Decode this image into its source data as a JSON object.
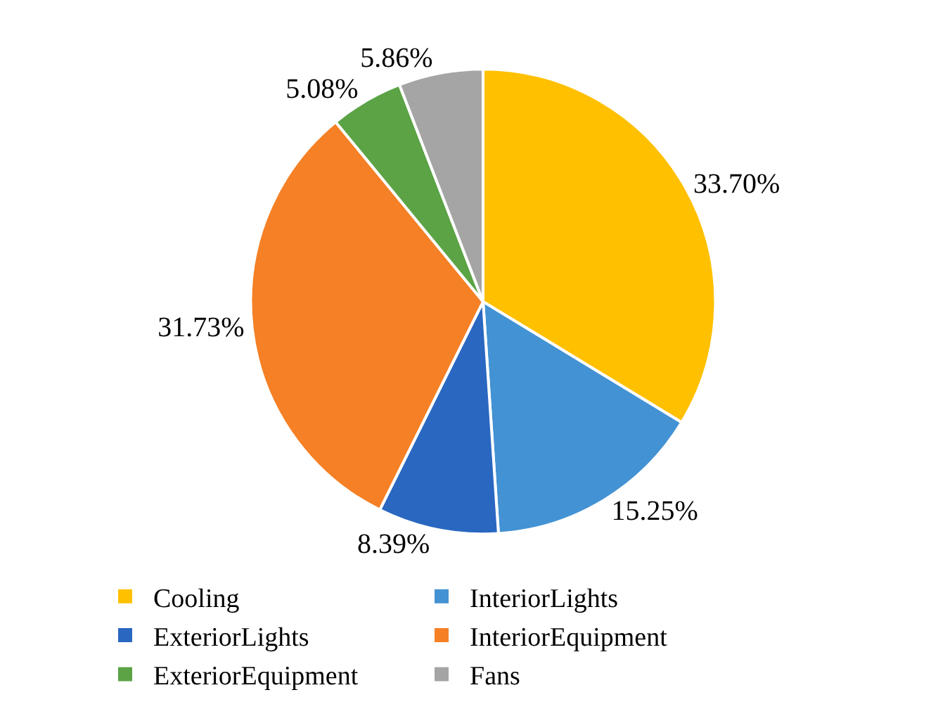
{
  "chart_data": {
    "type": "pie",
    "categories": [
      "Cooling",
      "InteriorLights",
      "ExteriorLights",
      "InteriorEquipment",
      "ExteriorEquipment",
      "Fans"
    ],
    "values": [
      33.7,
      15.25,
      8.39,
      31.73,
      5.08,
      5.86
    ],
    "value_labels": [
      "33.70%",
      "15.25%",
      "8.39%",
      "31.73%",
      "5.08%",
      "5.86%"
    ],
    "colors": [
      "#ffc000",
      "#4392d3",
      "#2967c1",
      "#f58025",
      "#5ba345",
      "#a5a5a5"
    ],
    "legend": "bottom"
  }
}
